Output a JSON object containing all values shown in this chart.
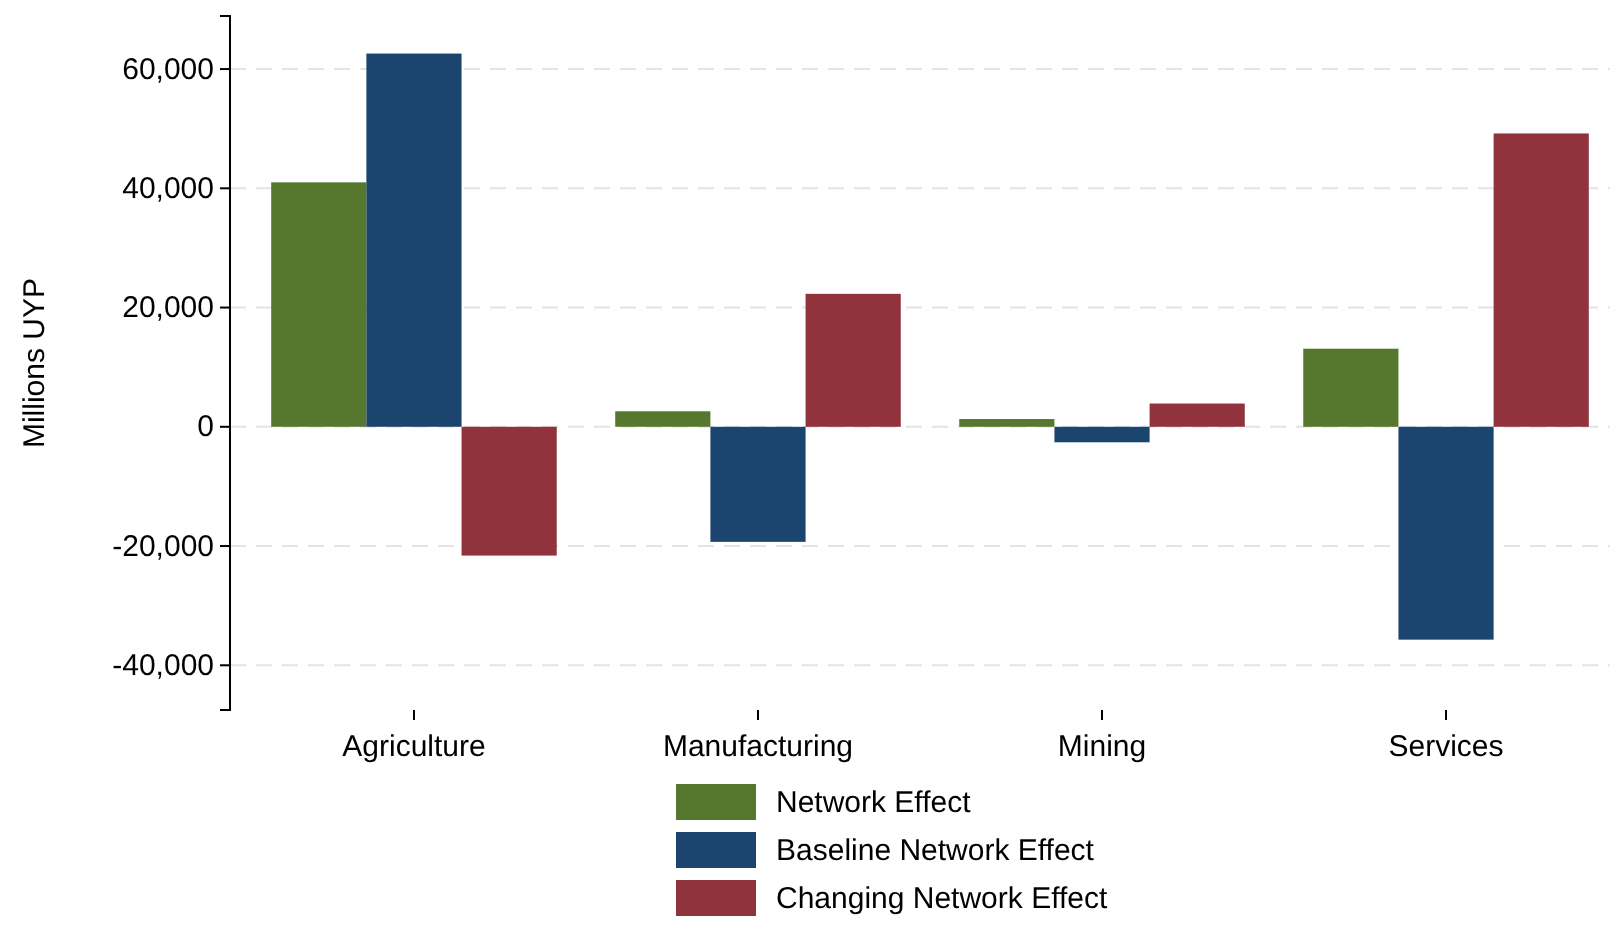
{
  "chart_data": {
    "type": "bar",
    "ylabel": "Millions UYP",
    "categories": [
      "Agriculture",
      "Manufacturing",
      "Mining",
      "Services"
    ],
    "series": [
      {
        "name": "Network Effect",
        "color": "#55782e",
        "values": [
          41000,
          2600,
          1300,
          13100
        ]
      },
      {
        "name": "Baseline Network Effect",
        "color": "#1b456f",
        "values": [
          62600,
          -19300,
          -2600,
          -35700
        ]
      },
      {
        "name": "Changing Network Effect",
        "color": "#90333d",
        "values": [
          -21600,
          22300,
          3900,
          49200
        ]
      }
    ],
    "ylim": [
      -47500,
      68900
    ],
    "yticks": [
      {
        "value": -40000,
        "label": "-40,000"
      },
      {
        "value": -20000,
        "label": "-20,000"
      },
      0,
      {
        "value": 20000,
        "label": "20,000"
      },
      {
        "value": 40000,
        "label": "40,000"
      },
      {
        "value": 60000,
        "label": "60,000"
      }
    ],
    "grid": "y",
    "legend": "bottom"
  }
}
